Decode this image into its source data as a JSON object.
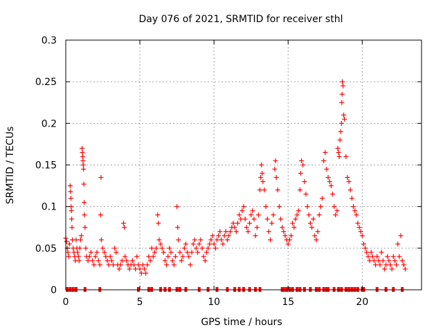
{
  "chart_data": {
    "type": "scatter",
    "title": "Day 076 of 2021, SRMTID for receiver sthl",
    "xlabel": "GPS time / hours",
    "ylabel": "SRMTID / TECUs",
    "xlim": [
      0,
      24
    ],
    "ylim": [
      0,
      0.3
    ],
    "grid": true,
    "marker": "+",
    "color": "#ff0000",
    "xticks": [
      0,
      5,
      10,
      15,
      20
    ],
    "xtick_labels": [
      "0",
      "5",
      "10",
      "15",
      "20"
    ],
    "yticks": [
      0,
      0.05,
      0.1,
      0.15,
      0.2,
      0.25,
      0.3
    ],
    "ytick_labels": [
      "0",
      "0.05",
      "0.1",
      "0.15",
      "0.2",
      "0.25",
      "0.3"
    ],
    "series": [
      {
        "name": "SRMTID",
        "points": [
          [
            0.0,
            0.062
          ],
          [
            0.05,
            0.058
          ],
          [
            0.1,
            0.05
          ],
          [
            0.15,
            0.045
          ],
          [
            0.2,
            0.04
          ],
          [
            0.25,
            0.055
          ],
          [
            0.3,
            0.125
          ],
          [
            0.32,
            0.118
          ],
          [
            0.35,
            0.11
          ],
          [
            0.36,
            0.1
          ],
          [
            0.38,
            0.095
          ],
          [
            0.4,
            0.085
          ],
          [
            0.42,
            0.075
          ],
          [
            0.45,
            0.06
          ],
          [
            0.5,
            0.05
          ],
          [
            0.55,
            0.045
          ],
          [
            0.6,
            0.04
          ],
          [
            0.65,
            0.035
          ],
          [
            0.7,
            0.06
          ],
          [
            0.75,
            0.05
          ],
          [
            0.8,
            0.045
          ],
          [
            0.85,
            0.04
          ],
          [
            0.9,
            0.035
          ],
          [
            0.95,
            0.05
          ],
          [
            1.0,
            0.06
          ],
          [
            1.05,
            0.065
          ],
          [
            1.1,
            0.17
          ],
          [
            1.12,
            0.165
          ],
          [
            1.14,
            0.16
          ],
          [
            1.16,
            0.155
          ],
          [
            1.18,
            0.15
          ],
          [
            1.2,
            0.145
          ],
          [
            1.22,
            0.127
          ],
          [
            1.24,
            0.105
          ],
          [
            1.26,
            0.09
          ],
          [
            1.3,
            0.075
          ],
          [
            1.35,
            0.05
          ],
          [
            1.4,
            0.04
          ],
          [
            1.5,
            0.035
          ],
          [
            1.6,
            0.04
          ],
          [
            1.7,
            0.045
          ],
          [
            1.8,
            0.035
          ],
          [
            1.9,
            0.03
          ],
          [
            2.0,
            0.04
          ],
          [
            2.1,
            0.045
          ],
          [
            2.2,
            0.035
          ],
          [
            2.3,
            0.03
          ],
          [
            2.35,
            0.09
          ],
          [
            2.38,
            0.135
          ],
          [
            2.4,
            0.06
          ],
          [
            2.5,
            0.05
          ],
          [
            2.6,
            0.045
          ],
          [
            2.7,
            0.04
          ],
          [
            2.8,
            0.035
          ],
          [
            2.9,
            0.03
          ],
          [
            3.0,
            0.04
          ],
          [
            3.1,
            0.035
          ],
          [
            3.2,
            0.03
          ],
          [
            3.3,
            0.05
          ],
          [
            3.4,
            0.045
          ],
          [
            3.5,
            0.03
          ],
          [
            3.6,
            0.025
          ],
          [
            3.7,
            0.03
          ],
          [
            3.8,
            0.035
          ],
          [
            3.9,
            0.08
          ],
          [
            3.95,
            0.075
          ],
          [
            4.0,
            0.04
          ],
          [
            4.1,
            0.035
          ],
          [
            4.2,
            0.03
          ],
          [
            4.3,
            0.025
          ],
          [
            4.4,
            0.03
          ],
          [
            4.5,
            0.035
          ],
          [
            4.6,
            0.03
          ],
          [
            4.7,
            0.025
          ],
          [
            4.8,
            0.04
          ],
          [
            4.9,
            0.03
          ],
          [
            5.0,
            0.025
          ],
          [
            5.1,
            0.02
          ],
          [
            5.2,
            0.03
          ],
          [
            5.3,
            0.025
          ],
          [
            5.4,
            0.02
          ],
          [
            5.5,
            0.03
          ],
          [
            5.6,
            0.04
          ],
          [
            5.7,
            0.035
          ],
          [
            5.8,
            0.05
          ],
          [
            5.9,
            0.04
          ],
          [
            6.0,
            0.045
          ],
          [
            6.1,
            0.05
          ],
          [
            6.2,
            0.09
          ],
          [
            6.25,
            0.08
          ],
          [
            6.3,
            0.06
          ],
          [
            6.4,
            0.055
          ],
          [
            6.5,
            0.05
          ],
          [
            6.6,
            0.045
          ],
          [
            6.7,
            0.035
          ],
          [
            6.8,
            0.03
          ],
          [
            6.9,
            0.04
          ],
          [
            7.0,
            0.05
          ],
          [
            7.1,
            0.045
          ],
          [
            7.2,
            0.035
          ],
          [
            7.3,
            0.03
          ],
          [
            7.4,
            0.04
          ],
          [
            7.5,
            0.1
          ],
          [
            7.55,
            0.075
          ],
          [
            7.6,
            0.06
          ],
          [
            7.7,
            0.045
          ],
          [
            7.8,
            0.035
          ],
          [
            7.9,
            0.04
          ],
          [
            8.0,
            0.05
          ],
          [
            8.1,
            0.055
          ],
          [
            8.2,
            0.045
          ],
          [
            8.3,
            0.04
          ],
          [
            8.4,
            0.03
          ],
          [
            8.5,
            0.045
          ],
          [
            8.6,
            0.055
          ],
          [
            8.7,
            0.06
          ],
          [
            8.8,
            0.05
          ],
          [
            8.9,
            0.045
          ],
          [
            9.0,
            0.055
          ],
          [
            9.1,
            0.06
          ],
          [
            9.2,
            0.05
          ],
          [
            9.3,
            0.04
          ],
          [
            9.4,
            0.035
          ],
          [
            9.5,
            0.045
          ],
          [
            9.6,
            0.05
          ],
          [
            9.7,
            0.055
          ],
          [
            9.8,
            0.06
          ],
          [
            9.9,
            0.065
          ],
          [
            10.0,
            0.055
          ],
          [
            10.1,
            0.05
          ],
          [
            10.2,
            0.06
          ],
          [
            10.3,
            0.065
          ],
          [
            10.4,
            0.07
          ],
          [
            10.5,
            0.06
          ],
          [
            10.6,
            0.055
          ],
          [
            10.7,
            0.065
          ],
          [
            10.8,
            0.07
          ],
          [
            10.9,
            0.06
          ],
          [
            11.0,
            0.065
          ],
          [
            11.1,
            0.07
          ],
          [
            11.2,
            0.075
          ],
          [
            11.3,
            0.08
          ],
          [
            11.4,
            0.075
          ],
          [
            11.5,
            0.07
          ],
          [
            11.6,
            0.08
          ],
          [
            11.7,
            0.09
          ],
          [
            11.8,
            0.085
          ],
          [
            11.9,
            0.095
          ],
          [
            12.0,
            0.1
          ],
          [
            12.1,
            0.085
          ],
          [
            12.2,
            0.075
          ],
          [
            12.3,
            0.07
          ],
          [
            12.4,
            0.08
          ],
          [
            12.5,
            0.09
          ],
          [
            12.6,
            0.095
          ],
          [
            12.7,
            0.085
          ],
          [
            12.8,
            0.065
          ],
          [
            12.9,
            0.075
          ],
          [
            13.0,
            0.09
          ],
          [
            13.1,
            0.12
          ],
          [
            13.15,
            0.135
          ],
          [
            13.2,
            0.15
          ],
          [
            13.25,
            0.14
          ],
          [
            13.3,
            0.13
          ],
          [
            13.4,
            0.12
          ],
          [
            13.5,
            0.1
          ],
          [
            13.6,
            0.085
          ],
          [
            13.7,
            0.07
          ],
          [
            13.8,
            0.06
          ],
          [
            13.9,
            0.08
          ],
          [
            14.0,
            0.09
          ],
          [
            14.1,
            0.145
          ],
          [
            14.15,
            0.155
          ],
          [
            14.2,
            0.135
          ],
          [
            14.3,
            0.12
          ],
          [
            14.4,
            0.1
          ],
          [
            14.5,
            0.085
          ],
          [
            14.6,
            0.075
          ],
          [
            14.7,
            0.07
          ],
          [
            14.8,
            0.065
          ],
          [
            14.9,
            0.06
          ],
          [
            15.0,
            0.055
          ],
          [
            15.1,
            0.06
          ],
          [
            15.2,
            0.065
          ],
          [
            15.3,
            0.08
          ],
          [
            15.4,
            0.075
          ],
          [
            15.5,
            0.085
          ],
          [
            15.6,
            0.09
          ],
          [
            15.7,
            0.095
          ],
          [
            15.8,
            0.12
          ],
          [
            15.85,
            0.14
          ],
          [
            15.9,
            0.155
          ],
          [
            16.0,
            0.15
          ],
          [
            16.1,
            0.13
          ],
          [
            16.2,
            0.115
          ],
          [
            16.3,
            0.1
          ],
          [
            16.4,
            0.09
          ],
          [
            16.5,
            0.08
          ],
          [
            16.6,
            0.075
          ],
          [
            16.7,
            0.085
          ],
          [
            16.8,
            0.065
          ],
          [
            16.9,
            0.06
          ],
          [
            17.0,
            0.07
          ],
          [
            17.1,
            0.09
          ],
          [
            17.2,
            0.1
          ],
          [
            17.3,
            0.11
          ],
          [
            17.4,
            0.155
          ],
          [
            17.5,
            0.165
          ],
          [
            17.6,
            0.145
          ],
          [
            17.7,
            0.135
          ],
          [
            17.8,
            0.13
          ],
          [
            17.9,
            0.125
          ],
          [
            18.0,
            0.115
          ],
          [
            18.1,
            0.1
          ],
          [
            18.2,
            0.09
          ],
          [
            18.3,
            0.095
          ],
          [
            18.35,
            0.17
          ],
          [
            18.4,
            0.165
          ],
          [
            18.45,
            0.16
          ],
          [
            18.5,
            0.18
          ],
          [
            18.55,
            0.19
          ],
          [
            18.6,
            0.2
          ],
          [
            18.62,
            0.225
          ],
          [
            18.64,
            0.235
          ],
          [
            18.66,
            0.25
          ],
          [
            18.7,
            0.245
          ],
          [
            18.75,
            0.21
          ],
          [
            18.8,
            0.205
          ],
          [
            18.9,
            0.16
          ],
          [
            19.0,
            0.135
          ],
          [
            19.1,
            0.13
          ],
          [
            19.2,
            0.12
          ],
          [
            19.3,
            0.11
          ],
          [
            19.4,
            0.1
          ],
          [
            19.5,
            0.095
          ],
          [
            19.6,
            0.09
          ],
          [
            19.7,
            0.08
          ],
          [
            19.8,
            0.075
          ],
          [
            19.9,
            0.07
          ],
          [
            20.0,
            0.065
          ],
          [
            20.1,
            0.055
          ],
          [
            20.2,
            0.05
          ],
          [
            20.3,
            0.045
          ],
          [
            20.4,
            0.04
          ],
          [
            20.5,
            0.035
          ],
          [
            20.6,
            0.045
          ],
          [
            20.7,
            0.04
          ],
          [
            20.8,
            0.035
          ],
          [
            20.9,
            0.03
          ],
          [
            21.0,
            0.04
          ],
          [
            21.1,
            0.035
          ],
          [
            21.2,
            0.03
          ],
          [
            21.3,
            0.045
          ],
          [
            21.4,
            0.035
          ],
          [
            21.5,
            0.025
          ],
          [
            21.6,
            0.03
          ],
          [
            21.7,
            0.04
          ],
          [
            21.8,
            0.035
          ],
          [
            21.9,
            0.03
          ],
          [
            22.0,
            0.025
          ],
          [
            22.1,
            0.04
          ],
          [
            22.2,
            0.035
          ],
          [
            22.3,
            0.03
          ],
          [
            22.4,
            0.055
          ],
          [
            22.5,
            0.04
          ],
          [
            22.6,
            0.065
          ],
          [
            22.7,
            0.035
          ],
          [
            22.8,
            0.03
          ],
          [
            22.9,
            0.025
          ]
        ]
      }
    ],
    "zero_points_x": [
      0.1,
      0.3,
      0.5,
      0.7,
      1.3,
      2.3,
      4.9,
      5.6,
      5.8,
      6.4,
      6.7,
      7.0,
      7.5,
      7.7,
      8.1,
      9.0,
      9.6,
      10.2,
      10.9,
      11.4,
      11.7,
      12.0,
      12.4,
      12.8,
      13.1,
      14.6,
      14.7,
      14.9,
      15.1,
      15.3,
      15.6,
      15.8,
      16.1,
      16.5,
      16.9,
      17.1,
      17.4,
      17.6,
      17.7,
      18.1,
      18.4,
      18.6,
      18.9,
      19.1,
      19.3,
      19.5,
      19.7,
      20.0,
      20.1,
      21.0,
      21.6,
      22.1,
      22.7
    ]
  }
}
